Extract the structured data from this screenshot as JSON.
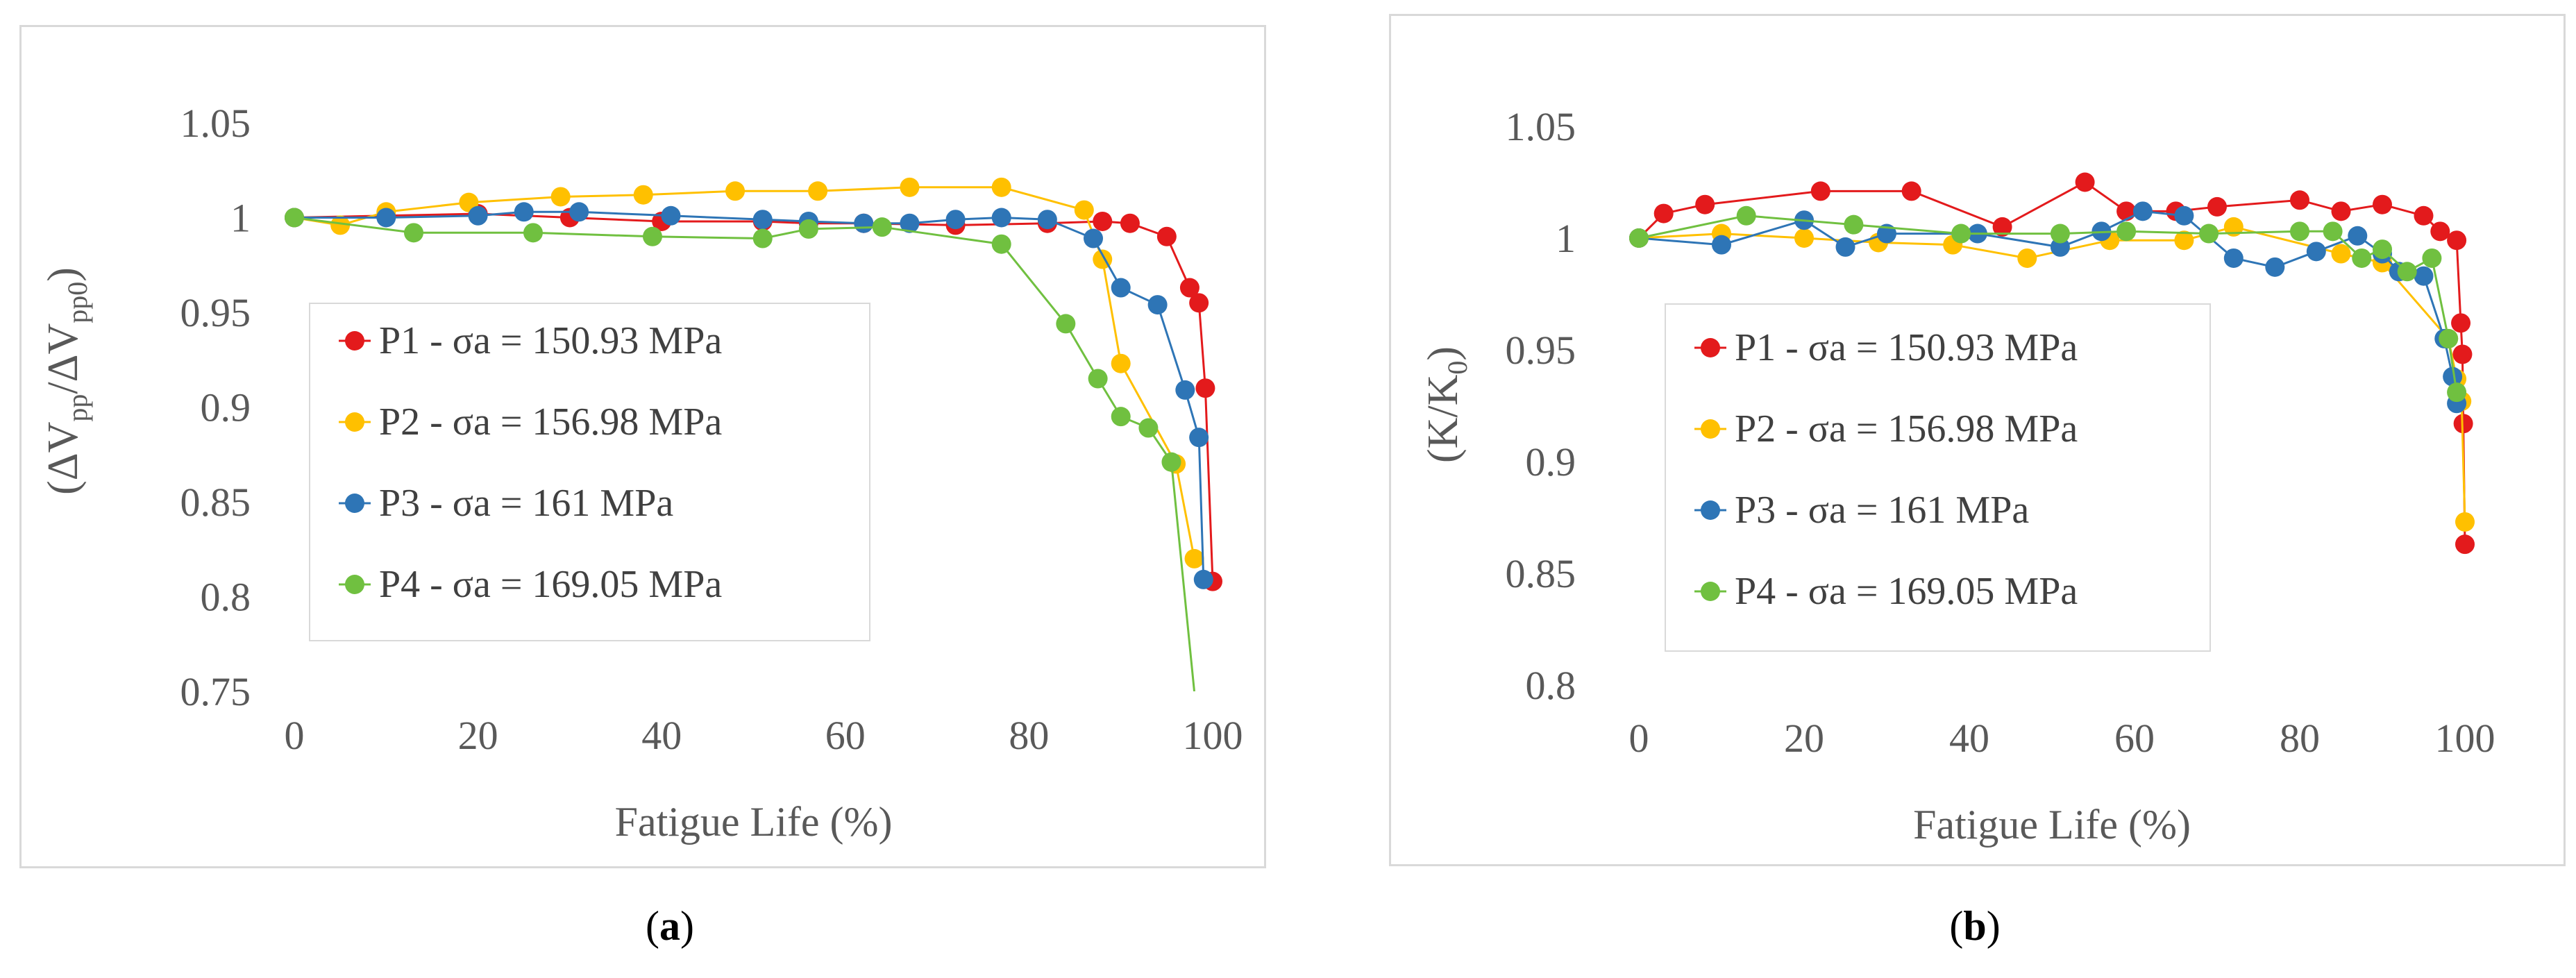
{
  "colors": {
    "P1": "#e31a1c",
    "P2": "#ffc000",
    "P3": "#2e75b6",
    "P4": "#70c040",
    "axis_text": "#595959",
    "border": "#d9d9d9"
  },
  "captions": {
    "a_open": "(",
    "a_letter": "a",
    "a_close": ")",
    "b_open": "(",
    "b_letter": "b",
    "b_close": ")"
  },
  "chart_data": [
    {
      "id": "a",
      "type": "line",
      "title": "",
      "xlabel": "Fatigue Life (%)",
      "ylabel_parts": {
        "open": "(ΔV",
        "sub1": "pp",
        "mid": "/ΔV",
        "sub2": "pp0",
        "close": ")"
      },
      "xlim": [
        0,
        100
      ],
      "ylim": [
        0.75,
        1.05
      ],
      "xticks": [
        0,
        20,
        40,
        60,
        80,
        100
      ],
      "xtick_labels": [
        "0",
        "20",
        "40",
        "60",
        "80",
        "100"
      ],
      "yticks": [
        0.75,
        0.8,
        0.85,
        0.9,
        0.95,
        1.0,
        1.05
      ],
      "ytick_labels": [
        "0.75",
        "0.8",
        "0.85",
        "0.9",
        "0.95",
        "1",
        "1.05"
      ],
      "grid": false,
      "legend_position": "center-left",
      "series": [
        {
          "name": "P1 - σa = 150.93 MPa",
          "color_key": "P1",
          "x": [
            0,
            10,
            20,
            30,
            40,
            51,
            56,
            62,
            72,
            82,
            88,
            91,
            95,
            97.5,
            98.5,
            99.2,
            100
          ],
          "y": [
            1.0,
            1.001,
            1.002,
            1.0,
            0.998,
            0.998,
            0.997,
            0.997,
            0.996,
            0.997,
            0.998,
            0.997,
            0.99,
            0.963,
            0.955,
            0.91,
            0.808
          ]
        },
        {
          "name": "P2 - σa = 156.98 MPa",
          "color_key": "P2",
          "x": [
            0,
            5,
            10,
            19,
            29,
            38,
            48,
            57,
            67,
            77,
            86,
            88,
            90,
            96,
            98
          ],
          "y": [
            1.0,
            0.996,
            1.003,
            1.008,
            1.011,
            1.012,
            1.014,
            1.014,
            1.016,
            1.016,
            1.004,
            0.978,
            0.923,
            0.87,
            0.82
          ]
        },
        {
          "name": "P3 - σa = 161 MPa",
          "color_key": "P3",
          "x": [
            0,
            10,
            20,
            25,
            31,
            41,
            51,
            56,
            62,
            67,
            72,
            77,
            82,
            87,
            90,
            94,
            97,
            98.5,
            99
          ],
          "y": [
            1.0,
            1.0,
            1.001,
            1.003,
            1.003,
            1.001,
            0.999,
            0.998,
            0.997,
            0.997,
            0.999,
            1.0,
            0.999,
            0.989,
            0.963,
            0.954,
            0.909,
            0.884,
            0.809
          ]
        },
        {
          "name": "P4 - σa = 169.05 MPa",
          "color_key": "P4",
          "x": [
            0,
            13,
            26,
            39,
            51,
            56,
            64,
            77,
            84,
            87.5,
            90,
            93,
            95.5,
            98
          ],
          "y": [
            1.0,
            0.992,
            0.992,
            0.99,
            0.989,
            0.994,
            0.995,
            0.986,
            0.944,
            0.915,
            0.895,
            0.889,
            0.871,
            0.75
          ],
          "last_point_marker": false
        }
      ]
    },
    {
      "id": "b",
      "type": "line",
      "title": "",
      "xlabel": "Fatigue Life (%)",
      "ylabel_parts": {
        "open": "(K/K",
        "sub1": "0",
        "mid": "",
        "sub2": "",
        "close": ")"
      },
      "xlim": [
        0,
        100
      ],
      "ylim": [
        0.8,
        1.05
      ],
      "xticks": [
        0,
        20,
        40,
        60,
        80,
        100
      ],
      "xtick_labels": [
        "0",
        "20",
        "40",
        "60",
        "80",
        "100"
      ],
      "yticks": [
        0.8,
        0.85,
        0.9,
        0.95,
        1.0,
        1.05
      ],
      "ytick_labels": [
        "0.8",
        "0.85",
        "0.9",
        "0.95",
        "1",
        "1.05"
      ],
      "grid": false,
      "legend_position": "center-left",
      "series": [
        {
          "name": "P1 - σa = 150.93 MPa",
          "color_key": "P1",
          "x": [
            0,
            3,
            8,
            22,
            33,
            44,
            54,
            59,
            65,
            70,
            80,
            85,
            90,
            95,
            97,
            99,
            99.5,
            99.7,
            99.8,
            100
          ],
          "y": [
            1.0,
            1.011,
            1.015,
            1.021,
            1.021,
            1.005,
            1.025,
            1.012,
            1.012,
            1.014,
            1.017,
            1.012,
            1.015,
            1.01,
            1.003,
            0.999,
            0.962,
            0.948,
            0.917,
            0.863
          ]
        },
        {
          "name": "P2 - σa = 156.98 MPa",
          "color_key": "P2",
          "x": [
            0,
            10,
            20,
            29,
            38,
            47,
            57,
            66,
            72,
            85,
            90,
            98,
            99,
            99.6,
            100
          ],
          "y": [
            1.0,
            1.002,
            1.0,
            0.998,
            0.997,
            0.991,
            0.999,
            0.999,
            1.005,
            0.993,
            0.989,
            0.955,
            0.937,
            0.927,
            0.873
          ]
        },
        {
          "name": "P3 - σa = 161 MPa",
          "color_key": "P3",
          "x": [
            0,
            10,
            20,
            25,
            30,
            41,
            51,
            56,
            61,
            66,
            72,
            77,
            82,
            87,
            90,
            92,
            95,
            97.5,
            98.5,
            99
          ],
          "y": [
            1.0,
            0.997,
            1.008,
            0.996,
            1.002,
            1.002,
            0.996,
            1.003,
            1.012,
            1.01,
            0.991,
            0.987,
            0.994,
            1.001,
            0.993,
            0.985,
            0.983,
            0.955,
            0.938,
            0.926
          ]
        },
        {
          "name": "P4 - σa = 169.05 MPa",
          "color_key": "P4",
          "x": [
            0,
            13,
            26,
            39,
            51,
            59,
            69,
            80,
            84,
            87.5,
            90,
            93,
            96,
            98,
            99
          ],
          "y": [
            1.0,
            1.01,
            1.006,
            1.002,
            1.002,
            1.003,
            1.002,
            1.003,
            1.003,
            0.991,
            0.995,
            0.985,
            0.991,
            0.955,
            0.931
          ]
        }
      ]
    }
  ]
}
